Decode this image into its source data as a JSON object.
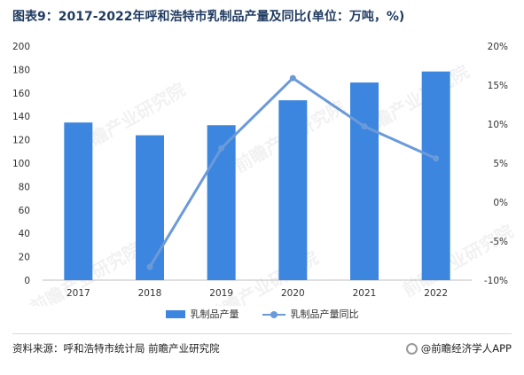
{
  "title": "图表9：2017-2022年呼和浩特市乳制品产量及同比(单位：万吨，%)",
  "chart_data": {
    "type": "bar",
    "categories": [
      "2017",
      "2018",
      "2019",
      "2020",
      "2021",
      "2022"
    ],
    "series": [
      {
        "name": "乳制品产量",
        "type": "bar",
        "axis": "left",
        "values": [
          134.7,
          123.8,
          132.4,
          153.7,
          168.9,
          178.3
        ]
      },
      {
        "name": "乳制品产量同比",
        "type": "line",
        "axis": "right",
        "values": [
          null,
          -8.3,
          6.9,
          15.9,
          9.7,
          5.6
        ]
      }
    ],
    "y_left": {
      "min": 0,
      "max": 200,
      "step": 20
    },
    "y_right": {
      "min": -10,
      "max": 20,
      "step": 5,
      "unit": "%"
    },
    "legend": "bottom-center",
    "grid": false,
    "colors": {
      "bar": "#3c86e0",
      "line": "#6b9ad8"
    }
  },
  "watermark": "前瞻产业研究院",
  "source": "资料来源：呼和浩特市统计局 前瞻产业研究院",
  "brand": "@前瞻经济学人APP"
}
